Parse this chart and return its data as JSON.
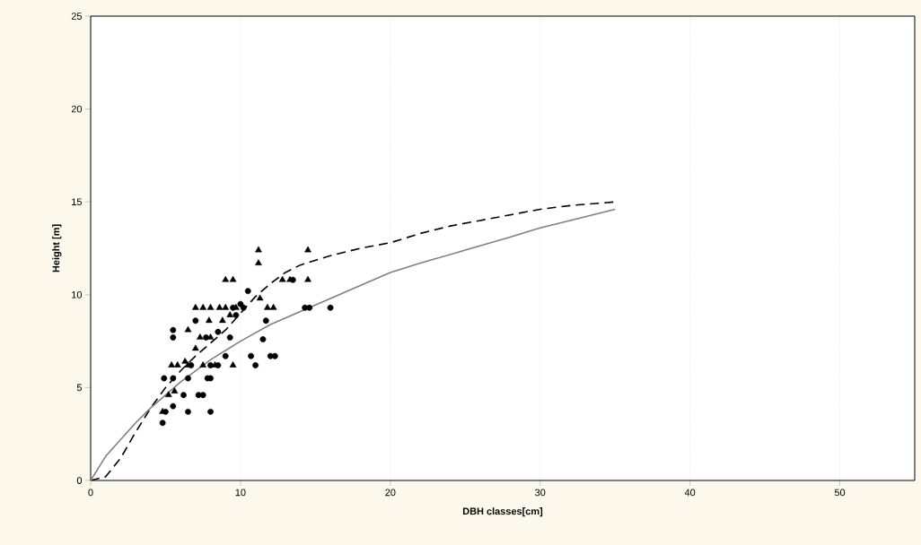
{
  "chart_data": {
    "type": "scatter",
    "xlabel": "DBH classes[cm]",
    "ylabel": "Height [m]",
    "xlim": [
      0,
      55
    ],
    "ylim": [
      0,
      25
    ],
    "xticks": [
      0,
      10,
      20,
      30,
      40,
      50
    ],
    "yticks": [
      0,
      5,
      10,
      15,
      20,
      25
    ],
    "grid": "x",
    "series": [
      {
        "marker": "circle",
        "color": "#000000",
        "x": [
          4.8,
          5.0,
          5.5,
          4.9,
          5.5,
          5.5,
          5.5,
          6.5,
          6.2,
          6.5,
          6.7,
          7.0,
          7.2,
          7.5,
          7.7,
          7.8,
          8.0,
          8.0,
          8.5,
          8.5,
          9.0,
          9.3,
          9.5,
          9.7,
          10.0,
          10.2,
          10.5,
          10.7,
          11.0,
          11.5,
          11.7,
          12.0,
          12.3,
          13.5,
          14.3,
          14.6,
          16.0,
          8.0
        ],
        "values": [
          3.1,
          3.7,
          4.0,
          5.5,
          5.5,
          7.7,
          8.1,
          3.7,
          4.6,
          5.5,
          6.2,
          8.6,
          4.6,
          4.6,
          7.7,
          5.5,
          3.7,
          5.5,
          8.0,
          6.2,
          6.7,
          7.7,
          9.3,
          8.9,
          9.5,
          9.3,
          10.2,
          6.7,
          6.2,
          7.6,
          8.6,
          6.7,
          6.7,
          10.8,
          9.3,
          9.3,
          9.3,
          6.2
        ]
      },
      {
        "marker": "triangle",
        "color": "#000000",
        "x": [
          4.8,
          5.2,
          5.4,
          5.6,
          5.8,
          6.5,
          6.5,
          6.3,
          7.0,
          7.0,
          7.3,
          7.5,
          7.5,
          7.9,
          8.0,
          8.0,
          8.3,
          8.6,
          8.8,
          9.0,
          9.0,
          9.3,
          9.5,
          9.5,
          9.7,
          11.2,
          11.2,
          11.3,
          11.8,
          12.2,
          12.8,
          13.3,
          14.5,
          14.5
        ],
        "values": [
          3.7,
          4.6,
          6.2,
          4.8,
          6.2,
          6.2,
          8.1,
          6.4,
          9.3,
          7.1,
          7.7,
          9.3,
          6.2,
          8.6,
          9.3,
          7.7,
          6.2,
          9.3,
          8.6,
          10.8,
          9.3,
          8.9,
          10.8,
          6.2,
          9.3,
          12.4,
          11.7,
          9.8,
          9.3,
          9.3,
          10.8,
          10.8,
          12.4,
          10.8
        ]
      },
      {
        "type": "line",
        "marker": "none",
        "line_style": "dashed",
        "color": "#000000",
        "x": [
          0,
          1,
          2,
          3,
          4,
          5,
          6,
          7,
          8,
          9,
          10,
          11,
          12,
          13,
          14,
          16,
          18,
          20,
          22,
          24,
          26,
          28,
          30,
          32,
          35
        ],
        "values": [
          0,
          0.2,
          1.2,
          2.6,
          3.9,
          5.0,
          5.9,
          6.7,
          7.4,
          8.1,
          9.0,
          9.9,
          10.6,
          11.2,
          11.6,
          12.1,
          12.5,
          12.8,
          13.3,
          13.7,
          14.0,
          14.3,
          14.6,
          14.8,
          15.0
        ]
      },
      {
        "type": "line",
        "marker": "none",
        "line_style": "solid",
        "color": "#808080",
        "x": [
          0,
          1,
          2,
          3,
          4,
          5,
          6,
          7,
          8,
          10,
          12,
          14,
          16,
          18,
          20,
          22,
          25,
          28,
          30,
          32,
          35
        ],
        "values": [
          0,
          1.3,
          2.2,
          3.1,
          3.9,
          4.6,
          5.3,
          5.9,
          6.5,
          7.5,
          8.4,
          9.1,
          9.8,
          10.5,
          11.2,
          11.7,
          12.4,
          13.1,
          13.6,
          14.0,
          14.6
        ]
      }
    ]
  }
}
